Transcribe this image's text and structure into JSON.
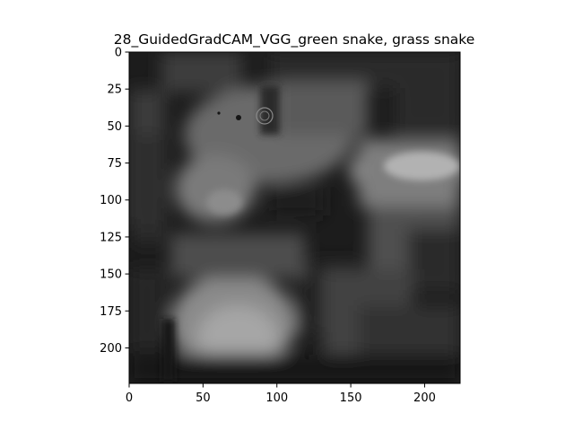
{
  "chart_data": {
    "type": "heatmap",
    "title": "28_GuidedGradCAM_VGG_green snake, grass snake",
    "xlabel": "",
    "ylabel": "",
    "xlim": [
      0,
      224
    ],
    "ylim": [
      224,
      0
    ],
    "colormap": "grayscale",
    "x_ticks": [
      0,
      50,
      100,
      150,
      200
    ],
    "y_ticks": [
      0,
      25,
      50,
      75,
      100,
      125,
      150,
      175,
      200
    ],
    "grid": false,
    "legend": "none"
  }
}
